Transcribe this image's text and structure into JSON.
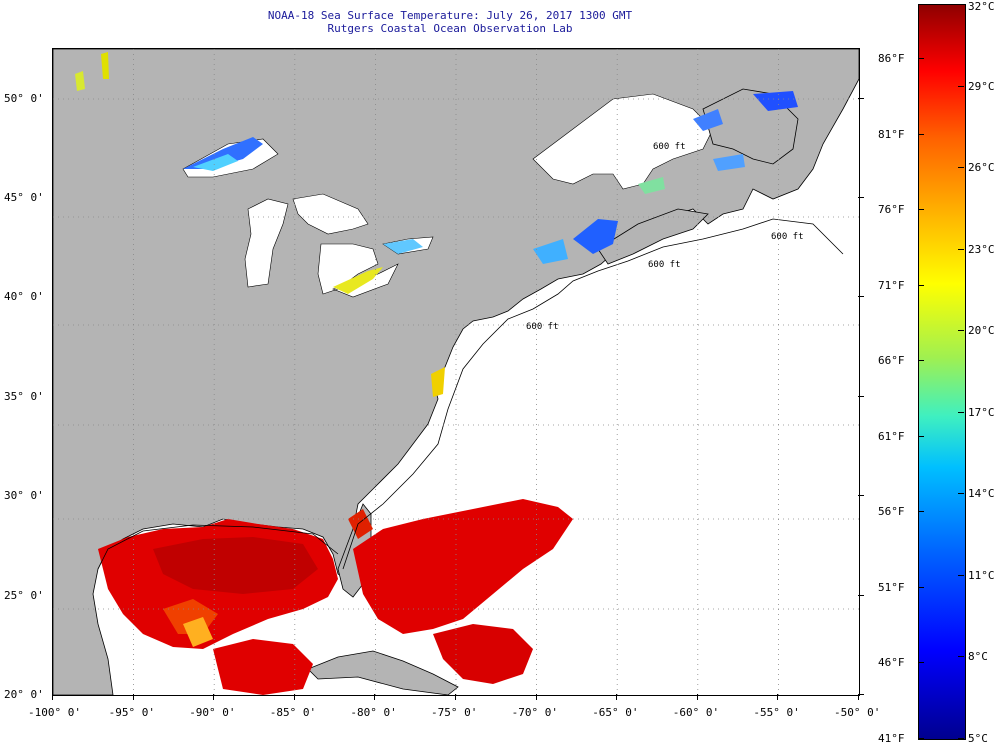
{
  "title": {
    "line1": "NOAA-18 Sea Surface Temperature:  July 26, 2017 1300 GMT",
    "line2": "Rutgers Coastal Ocean Observation Lab"
  },
  "map": {
    "lon_range": [
      -100,
      -50
    ],
    "lat_range": [
      20,
      52.5
    ],
    "lon_ticks": [
      "-100° 0'",
      "-95° 0'",
      "-90° 0'",
      "-85° 0'",
      "-80° 0'",
      "-75° 0'",
      "-70° 0'",
      "-65° 0'",
      "-60° 0'",
      "-55° 0'",
      "-50° 0'"
    ],
    "lat_ticks": [
      "20° 0'",
      "25° 0'",
      "30° 0'",
      "35° 0'",
      "40° 0'",
      "45° 0'",
      "50° 0'"
    ],
    "lat_tick_values": [
      20,
      25,
      30,
      35,
      40,
      45,
      50
    ],
    "land_color": "#b4b4b4",
    "isobath_labels": [
      "600 ft",
      "600 ft",
      "600 ft",
      "600 ft"
    ]
  },
  "colorbar": {
    "celsius_labels": [
      "32°C",
      "29°C",
      "26°C",
      "23°C",
      "20°C",
      "17°C",
      "14°C",
      "11°C",
      "8°C",
      "5°C"
    ],
    "fahrenheit_labels": [
      "86°F",
      "81°F",
      "76°F",
      "71°F",
      "66°F",
      "61°F",
      "56°F",
      "51°F",
      "46°F",
      "41°F"
    ],
    "celsius_values": [
      32,
      29,
      26,
      23,
      20,
      17,
      14,
      11,
      8,
      5
    ],
    "fahrenheit_values": [
      86,
      81,
      76,
      71,
      66,
      61,
      56,
      51,
      46,
      41
    ],
    "range_celsius": [
      5,
      32
    ]
  }
}
